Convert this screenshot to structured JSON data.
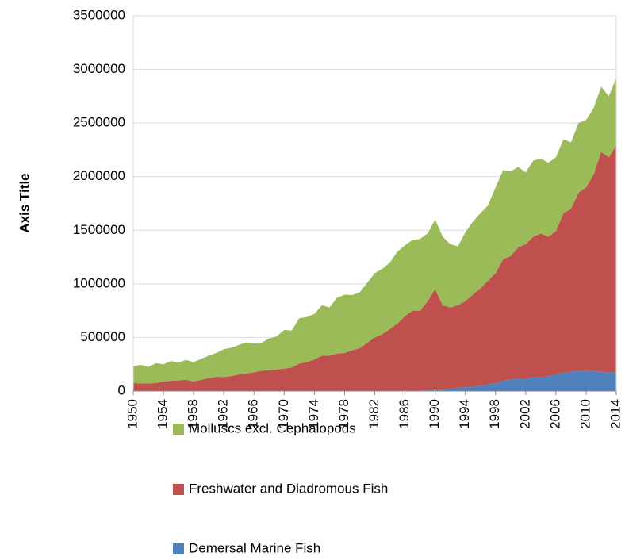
{
  "chart_data": {
    "type": "stacked_area",
    "y_label": "Axis Title",
    "x": [
      1950,
      1951,
      1952,
      1953,
      1954,
      1955,
      1956,
      1957,
      1958,
      1959,
      1960,
      1961,
      1962,
      1963,
      1964,
      1965,
      1966,
      1967,
      1968,
      1969,
      1970,
      1971,
      1972,
      1973,
      1974,
      1975,
      1976,
      1977,
      1978,
      1979,
      1980,
      1981,
      1982,
      1983,
      1984,
      1985,
      1986,
      1987,
      1988,
      1989,
      1990,
      1991,
      1992,
      1993,
      1994,
      1995,
      1996,
      1997,
      1998,
      1999,
      2000,
      2001,
      2002,
      2003,
      2004,
      2005,
      2006,
      2007,
      2008,
      2009,
      2010,
      2011,
      2012,
      2013,
      2014
    ],
    "xlim": [
      1950,
      2014
    ],
    "xticks": [
      1950,
      1954,
      1958,
      1962,
      1966,
      1970,
      1974,
      1978,
      1982,
      1986,
      1990,
      1994,
      1998,
      2002,
      2006,
      2010,
      2014
    ],
    "ylim": [
      0,
      3500000
    ],
    "yticks": [
      0,
      500000,
      1000000,
      1500000,
      2000000,
      2500000,
      3000000,
      3500000
    ],
    "grid": true,
    "series": [
      {
        "name": "Demersal Marine Fish",
        "color": "#4f81bd",
        "values": [
          0,
          0,
          0,
          0,
          0,
          0,
          0,
          0,
          0,
          0,
          0,
          0,
          0,
          0,
          0,
          0,
          0,
          0,
          0,
          0,
          0,
          0,
          0,
          0,
          0,
          0,
          0,
          0,
          0,
          0,
          0,
          0,
          0,
          0,
          0,
          2000,
          3000,
          4000,
          5000,
          7000,
          10000,
          15000,
          22000,
          30000,
          35000,
          42000,
          50000,
          60000,
          75000,
          95000,
          110000,
          115000,
          115000,
          130000,
          125000,
          140000,
          155000,
          170000,
          180000,
          190000,
          195000,
          185000,
          180000,
          175000,
          170000
        ]
      },
      {
        "name": "Freshwater and Diadromous Fish",
        "color": "#c0504d",
        "values": [
          75000,
          70000,
          70000,
          75000,
          90000,
          95000,
          100000,
          105000,
          90000,
          105000,
          120000,
          135000,
          130000,
          140000,
          155000,
          165000,
          175000,
          190000,
          195000,
          200000,
          210000,
          220000,
          255000,
          270000,
          295000,
          330000,
          330000,
          350000,
          355000,
          380000,
          400000,
          450000,
          500000,
          530000,
          580000,
          628000,
          697000,
          746000,
          745000,
          833000,
          940000,
          785000,
          758000,
          770000,
          805000,
          858000,
          910000,
          970000,
          1025000,
          1135000,
          1150000,
          1225000,
          1255000,
          1310000,
          1345000,
          1300000,
          1335000,
          1490000,
          1520000,
          1660000,
          1705000,
          1835000,
          2050000,
          2005000,
          2120000
        ]
      },
      {
        "name": "Molluscs excl. Cephalopods",
        "color": "#9bbb59",
        "values": [
          155000,
          175000,
          155000,
          185000,
          160000,
          185000,
          165000,
          185000,
          180000,
          195000,
          210000,
          220000,
          260000,
          265000,
          275000,
          290000,
          270000,
          260000,
          295000,
          310000,
          360000,
          345000,
          425000,
          420000,
          425000,
          470000,
          450000,
          520000,
          545000,
          515000,
          520000,
          560000,
          600000,
          610000,
          620000,
          670000,
          660000,
          660000,
          670000,
          630000,
          650000,
          640000,
          590000,
          550000,
          640000,
          680000,
          700000,
          700000,
          800000,
          830000,
          790000,
          750000,
          670000,
          710000,
          700000,
          690000,
          690000,
          690000,
          620000,
          650000,
          630000,
          620000,
          610000,
          570000,
          630000
        ]
      }
    ]
  }
}
